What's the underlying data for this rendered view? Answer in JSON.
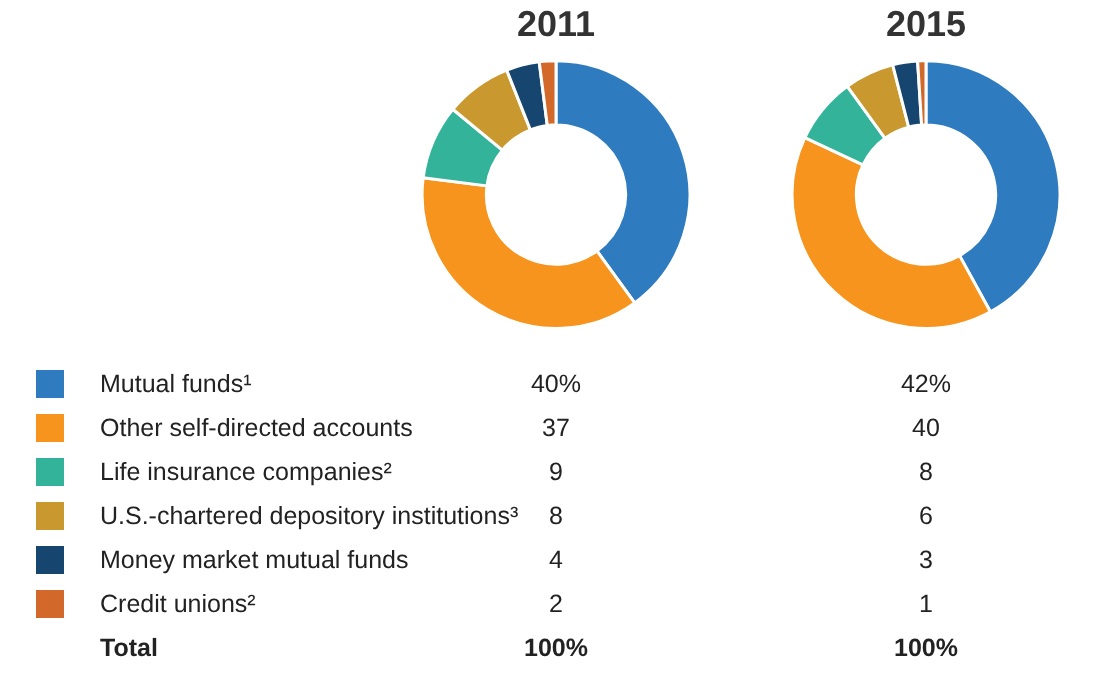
{
  "chart_data": {
    "type": "donut",
    "categories": [
      "Mutual funds¹",
      "Other self-directed accounts",
      "Life insurance companies²",
      "U.S.-chartered depository institutions³",
      "Money market mutual funds",
      "Credit unions²"
    ],
    "colors": [
      "#2f7bbf",
      "#f7941d",
      "#33b39a",
      "#c9982f",
      "#16466f",
      "#d2692a"
    ],
    "series": [
      {
        "name": "2011",
        "values": [
          40,
          37,
          9,
          8,
          4,
          2
        ],
        "value_labels": [
          "40%",
          "37",
          "9",
          "8",
          "4",
          "2"
        ]
      },
      {
        "name": "2015",
        "values": [
          42,
          40,
          8,
          6,
          3,
          1
        ],
        "value_labels": [
          "42%",
          "40",
          "8",
          "6",
          "3",
          "1"
        ]
      }
    ],
    "totals": [
      "100%",
      "100%"
    ],
    "annotations": [
      "Total"
    ],
    "legend": "bottom"
  }
}
